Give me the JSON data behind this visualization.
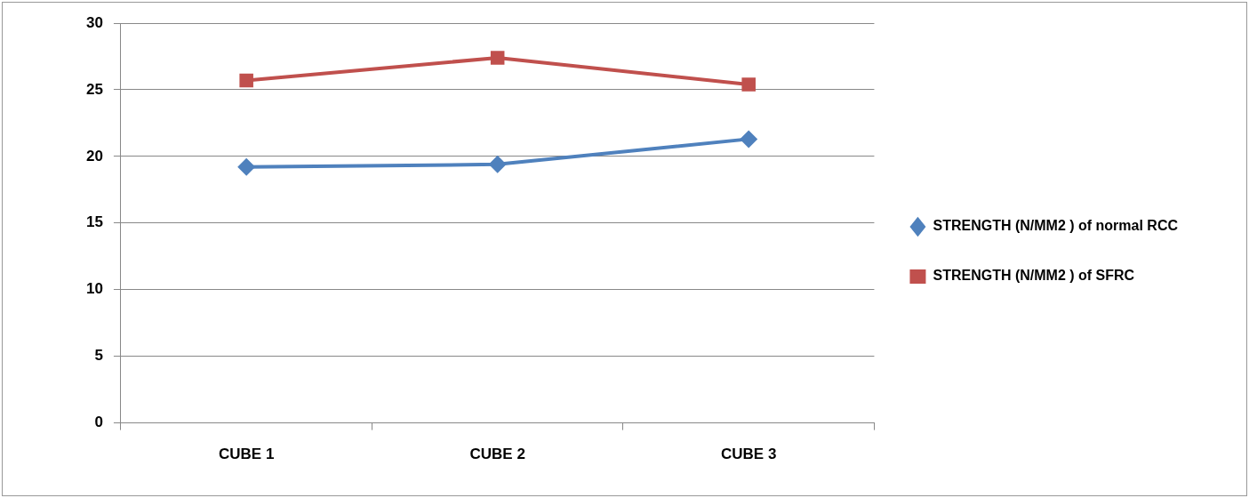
{
  "chart_data": {
    "type": "line",
    "categories": [
      "CUBE 1",
      "CUBE 2",
      "CUBE 3"
    ],
    "series": [
      {
        "name": "STRENGTH (N/MM2 ) of normal RCC",
        "color": "#4f81bd",
        "marker": "diamond",
        "values": [
          19.2,
          19.4,
          21.3
        ]
      },
      {
        "name": "STRENGTH (N/MM2 ) of SFRC",
        "color": "#c0504d",
        "marker": "square",
        "values": [
          25.7,
          27.4,
          25.4
        ]
      }
    ],
    "ylim": [
      0,
      30
    ],
    "yticks": [
      0,
      5,
      10,
      15,
      20,
      25,
      30
    ],
    "grid": "y",
    "legend": "right"
  }
}
